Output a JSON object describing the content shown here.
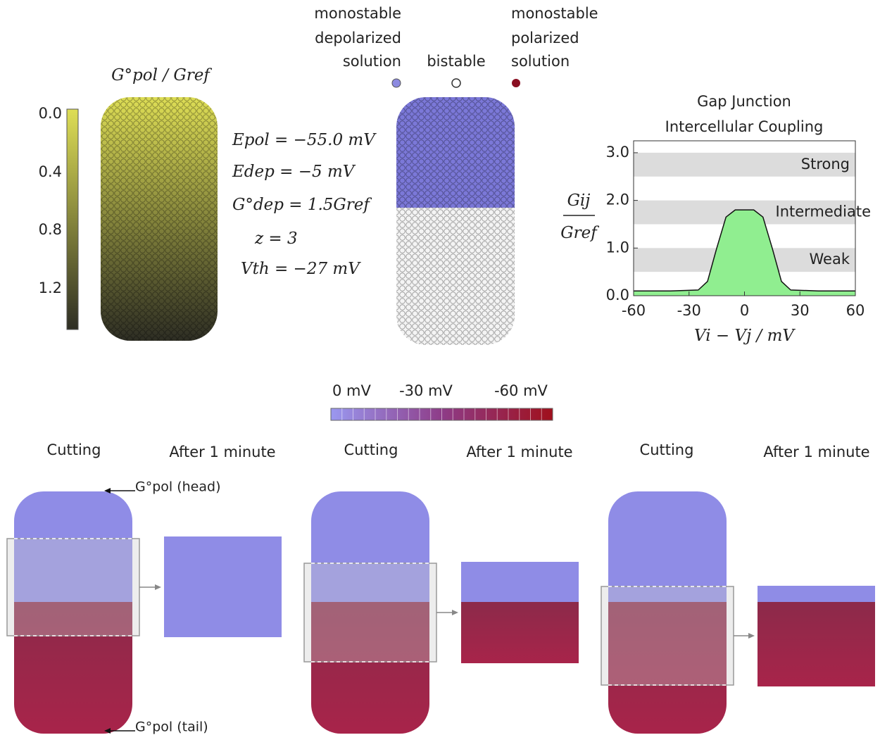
{
  "top_left": {
    "title": "G°pol / Gref",
    "colorbar_ticks": [
      "0.0",
      "0.4",
      "0.8",
      "1.2"
    ]
  },
  "parameters": [
    "Epol = −55.0 mV",
    "Edep = −5 mV",
    "G°dep = 1.5Gref",
    "z = 3",
    "Vth = −27 mV"
  ],
  "legend": [
    {
      "lines": [
        "monostable",
        "depolarized",
        "solution"
      ]
    },
    {
      "lines": [
        "bistable"
      ]
    },
    {
      "lines": [
        "monostable",
        "polarized",
        "solution"
      ]
    }
  ],
  "chart_data": {
    "type": "line",
    "title": [
      "Gap Junction",
      "Intercellular Coupling"
    ],
    "xlabel": "Vi − Vj / mV",
    "ylabel": [
      "Gij",
      "Gref"
    ],
    "x": [
      -60,
      -40,
      -25,
      -20,
      -15,
      -10,
      -5,
      0,
      5,
      10,
      15,
      20,
      25,
      40,
      60
    ],
    "values": [
      0.1,
      0.1,
      0.12,
      0.3,
      1.0,
      1.65,
      1.8,
      1.8,
      1.8,
      1.65,
      1.0,
      0.3,
      0.12,
      0.1,
      0.1
    ],
    "color": "#90ee90",
    "xlim": [
      -60,
      60
    ],
    "xticks": [
      -60,
      -30,
      0,
      30,
      60
    ],
    "ylim": [
      0,
      3.25
    ],
    "yticks": [
      {
        "value": 0,
        "label": "0.0"
      },
      {
        "value": 1,
        "label": "1.0"
      },
      {
        "value": 2,
        "label": "2.0"
      },
      {
        "value": 3,
        "label": "3.0"
      }
    ],
    "bands": [
      {
        "label": "Strong",
        "range": [
          2.5,
          3.0
        ]
      },
      {
        "label": "Intermediate",
        "range": [
          1.5,
          2.0
        ]
      },
      {
        "label": "Weak",
        "range": [
          0.5,
          1.0
        ]
      }
    ]
  },
  "bottom": {
    "colorbar_labels": [
      "0 mV",
      "-30 mV",
      "-60 mV"
    ],
    "panels": [
      {
        "before": "Cutting",
        "after": "After 1 minute"
      },
      {
        "before": "Cutting",
        "after": "After 1 minute"
      },
      {
        "before": "Cutting",
        "after": "After 1 minute"
      }
    ],
    "head_label": "G°pol (head)",
    "tail_label": "G°pol (tail)"
  }
}
